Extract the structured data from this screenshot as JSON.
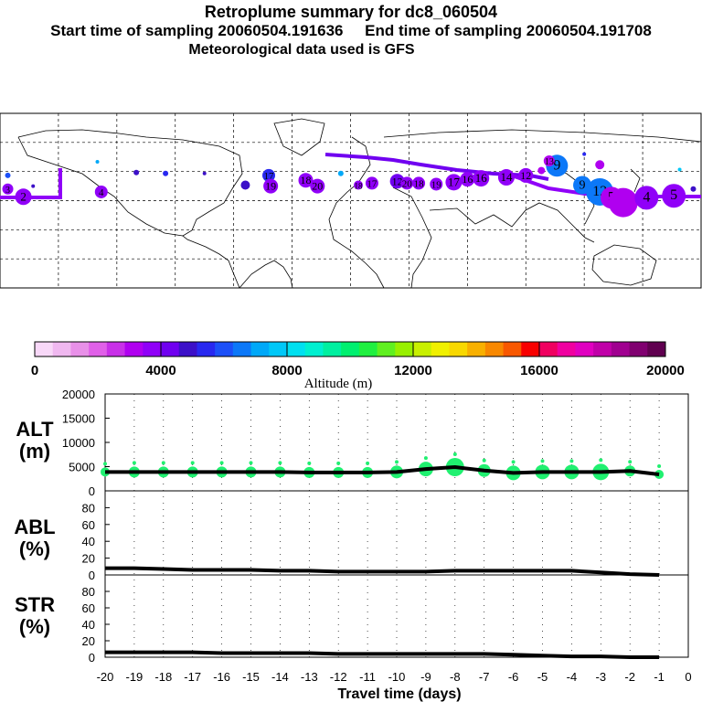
{
  "header": {
    "title": "Retroplume summary for dc8_060504",
    "start": "Start time of sampling 20060504.191636",
    "end": "End time of sampling 20060504.191708",
    "met": "Meteorological data used is GFS"
  },
  "colorbar": {
    "colors": [
      "#f8d8f8",
      "#f0b8f0",
      "#e890e8",
      "#e060e8",
      "#c830e8",
      "#b000f0",
      "#9000f8",
      "#7000f0",
      "#3c10c8",
      "#2828f0",
      "#1c50f8",
      "#0c78f8",
      "#00a8f8",
      "#00c8f8",
      "#00e0f0",
      "#00f0d0",
      "#00f0a0",
      "#00f070",
      "#20f040",
      "#60f020",
      "#98f000",
      "#c8f000",
      "#f0f000",
      "#f8d800",
      "#f8b000",
      "#f88800",
      "#f85800",
      "#f80000",
      "#f00060",
      "#f000a0",
      "#e000c0",
      "#c000a8",
      "#a00090",
      "#800070",
      "#600050"
    ],
    "labels": [
      "0",
      "4000",
      "8000",
      "12000",
      "16000",
      "20000"
    ],
    "title": "Altitude (m)"
  },
  "map": {
    "markers": [
      {
        "label": "2",
        "lon": -168,
        "lat": 4,
        "r": 9,
        "color": "#9000f8"
      },
      {
        "label": "3",
        "lon": -176,
        "lat": 12,
        "r": 6,
        "color": "#9000f8"
      },
      {
        "label": "4",
        "lon": -128,
        "lat": 9,
        "r": 7,
        "color": "#9000f8"
      },
      {
        "label": "",
        "lon": -176,
        "lat": 26,
        "r": 3,
        "color": "#1c50f8"
      },
      {
        "label": "",
        "lon": -163,
        "lat": 15,
        "r": 2,
        "color": "#3c10c8"
      },
      {
        "label": "",
        "lon": -130,
        "lat": 40,
        "r": 2,
        "color": "#00a8f8"
      },
      {
        "label": "",
        "lon": -110,
        "lat": 29,
        "r": 3,
        "color": "#3c10c8"
      },
      {
        "label": "",
        "lon": -95,
        "lat": 28,
        "r": 3,
        "color": "#2828f0"
      },
      {
        "label": "",
        "lon": -75,
        "lat": 28,
        "r": 2,
        "color": "#3c10c8"
      },
      {
        "label": "",
        "lon": -54,
        "lat": 16,
        "r": 5,
        "color": "#3c10c8"
      },
      {
        "label": "17",
        "lon": -42,
        "lat": 26,
        "r": 7,
        "color": "#2828f0"
      },
      {
        "label": "19",
        "lon": -41,
        "lat": 15,
        "r": 8,
        "color": "#9000f8"
      },
      {
        "label": "18",
        "lon": -23,
        "lat": 21,
        "r": 8,
        "color": "#9000f8"
      },
      {
        "label": "20",
        "lon": -17,
        "lat": 15,
        "r": 8,
        "color": "#9000f8"
      },
      {
        "label": "",
        "lon": -5,
        "lat": 28,
        "r": 3,
        "color": "#00a8f8"
      },
      {
        "label": "18",
        "lon": 4,
        "lat": 16,
        "r": 5,
        "color": "#9000f8"
      },
      {
        "label": "17",
        "lon": 11,
        "lat": 18,
        "r": 7,
        "color": "#9000f8"
      },
      {
        "label": "12",
        "lon": 24,
        "lat": 20,
        "r": 8,
        "color": "#7000f0"
      },
      {
        "label": "20",
        "lon": 29,
        "lat": 18,
        "r": 7,
        "color": "#9000f8"
      },
      {
        "label": "18",
        "lon": 35,
        "lat": 18,
        "r": 7,
        "color": "#9000f8"
      },
      {
        "label": "19",
        "lon": 44,
        "lat": 17,
        "r": 7,
        "color": "#9000f8"
      },
      {
        "label": "17",
        "lon": 53,
        "lat": 19,
        "r": 9,
        "color": "#9000f8"
      },
      {
        "label": "16",
        "lon": 60,
        "lat": 22,
        "r": 8,
        "color": "#9000f8"
      },
      {
        "label": "16",
        "lon": 67,
        "lat": 23,
        "r": 9,
        "color": "#9000f8"
      },
      {
        "label": "14",
        "lon": 80,
        "lat": 24,
        "r": 9,
        "color": "#9000f8"
      },
      {
        "label": "12",
        "lon": 90,
        "lat": 26,
        "r": 8,
        "color": "#9000f8"
      },
      {
        "label": "",
        "lon": 98,
        "lat": 31,
        "r": 4,
        "color": "#b000f0"
      },
      {
        "label": "9",
        "lon": 106,
        "lat": 36,
        "r": 12,
        "color": "#0c78f8"
      },
      {
        "label": "13",
        "lon": 102,
        "lat": 41,
        "r": 6,
        "color": "#b000f0"
      },
      {
        "label": "",
        "lon": 128,
        "lat": 37,
        "r": 5,
        "color": "#b000f0"
      },
      {
        "label": "9",
        "lon": 119,
        "lat": 16,
        "r": 10,
        "color": "#0c78f8"
      },
      {
        "label": "12",
        "lon": 128,
        "lat": 9,
        "r": 15,
        "color": "#0c78f8"
      },
      {
        "label": "5",
        "lon": 134,
        "lat": 3,
        "r": 12,
        "color": "#b000f0"
      },
      {
        "label": "",
        "lon": 140,
        "lat": -2,
        "r": 16,
        "color": "#b000f0"
      },
      {
        "label": "4",
        "lon": 152,
        "lat": 3,
        "r": 13,
        "color": "#9000f8"
      },
      {
        "label": "5",
        "lon": 166,
        "lat": 5,
        "r": 13,
        "color": "#9000f8"
      },
      {
        "label": "",
        "lon": 120,
        "lat": 48,
        "r": 2,
        "color": "#2828f0"
      },
      {
        "label": "",
        "lon": 169,
        "lat": 32,
        "r": 2,
        "color": "#00c8f8"
      },
      {
        "label": "",
        "lon": 176,
        "lat": 12,
        "r": 3,
        "color": "#3c10c8"
      }
    ]
  },
  "panels": {
    "alt": {
      "label1": "ALT",
      "label2": "(m)",
      "yticks": [
        "20000",
        "15000",
        "10000",
        "5000",
        "0"
      ]
    },
    "abl": {
      "label1": "ABL",
      "label2": "(%)",
      "yticks": [
        "80",
        "60",
        "40",
        "20",
        "0"
      ]
    },
    "str": {
      "label1": "STR",
      "label2": "(%)",
      "yticks": [
        "80",
        "60",
        "40",
        "20",
        "0"
      ]
    },
    "xlabel": "Travel time (days)",
    "xticks": [
      "-20",
      "-19",
      "-18",
      "-17",
      "-16",
      "-15",
      "-14",
      "-13",
      "-12",
      "-11",
      "-10",
      "-9",
      "-8",
      "-7",
      "-6",
      "-5",
      "-4",
      "-3",
      "-2",
      "-1",
      "0"
    ]
  },
  "chart_data": {
    "type": "line",
    "title": "Retroplume summary for dc8_060504",
    "xlabel": "Travel time (days)",
    "x": [
      -20,
      -19,
      -18,
      -17,
      -16,
      -15,
      -14,
      -13,
      -12,
      -11,
      -10,
      -9,
      -8,
      -7,
      -6,
      -5,
      -4,
      -3,
      -2,
      -1
    ],
    "xlim": [
      -20,
      0
    ],
    "series": [
      {
        "name": "ALT (m)",
        "ylim": [
          0,
          20000
        ],
        "values": [
          3900,
          3900,
          3900,
          3900,
          3900,
          3900,
          3900,
          3800,
          3800,
          3800,
          3900,
          4500,
          4900,
          4200,
          3700,
          3900,
          3900,
          3900,
          4100,
          3400
        ]
      },
      {
        "name": "ABL (%)",
        "ylim": [
          0,
          100
        ],
        "values": [
          8,
          8,
          7,
          6,
          6,
          6,
          5,
          5,
          4,
          4,
          4,
          4,
          5,
          5,
          5,
          5,
          5,
          3,
          1,
          0
        ]
      },
      {
        "name": "STR (%)",
        "ylim": [
          0,
          100
        ],
        "values": [
          6,
          6,
          6,
          6,
          5,
          5,
          5,
          5,
          4,
          4,
          4,
          4,
          4,
          4,
          3,
          2,
          1,
          1,
          0,
          0
        ]
      }
    ],
    "alt_spread": [
      {
        "x": -20,
        "r": 5
      },
      {
        "x": -19,
        "r": 6
      },
      {
        "x": -18,
        "r": 6
      },
      {
        "x": -17,
        "r": 6
      },
      {
        "x": -16,
        "r": 6
      },
      {
        "x": -15,
        "r": 6
      },
      {
        "x": -14,
        "r": 6
      },
      {
        "x": -13,
        "r": 6
      },
      {
        "x": -12,
        "r": 6
      },
      {
        "x": -11,
        "r": 6
      },
      {
        "x": -10,
        "r": 7
      },
      {
        "x": -9,
        "r": 8
      },
      {
        "x": -8,
        "r": 10
      },
      {
        "x": -7,
        "r": 7
      },
      {
        "x": -6,
        "r": 8
      },
      {
        "x": -5,
        "r": 8
      },
      {
        "x": -4,
        "r": 8
      },
      {
        "x": -3,
        "r": 9
      },
      {
        "x": -2,
        "r": 6
      },
      {
        "x": -1,
        "r": 5
      }
    ]
  }
}
